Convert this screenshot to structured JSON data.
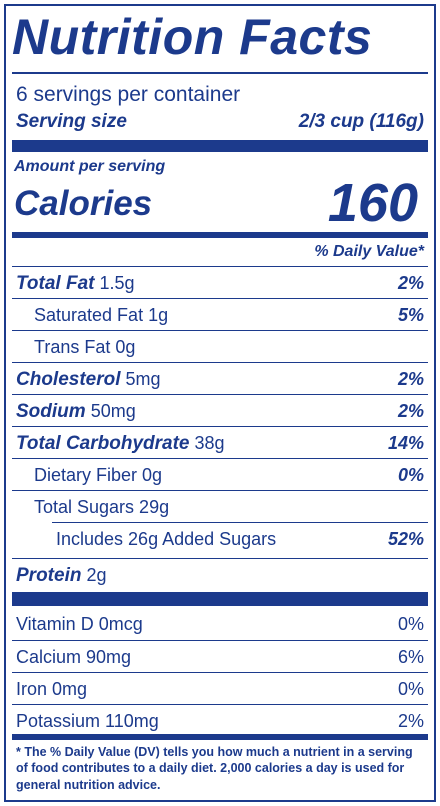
{
  "title": "Nutrition Facts",
  "servings_per_container": "6 servings per container",
  "serving_size": {
    "label": "Serving size",
    "value": "2/3 cup (116g)"
  },
  "amount_per_serving": "Amount per serving",
  "calories": {
    "label": "Calories",
    "value": "160"
  },
  "daily_value_header": "% Daily Value*",
  "nutrients": [
    {
      "name": "Total Fat",
      "amount": "1.5g",
      "dv": "2%"
    },
    {
      "name": "Saturated Fat 1g",
      "dv": "5%"
    },
    {
      "name": "Trans Fat 0g",
      "dv": ""
    },
    {
      "name": "Cholesterol",
      "amount": "5mg",
      "dv": "2%"
    },
    {
      "name": "Sodium",
      "amount": "50mg",
      "dv": "2%"
    },
    {
      "name": "Total Carbohydrate",
      "amount": "38g",
      "dv": "14%"
    },
    {
      "name": "Dietary Fiber 0g",
      "dv": "0%"
    },
    {
      "name": "Total Sugars 29g",
      "dv": ""
    },
    {
      "name": "Includes 26g Added Sugars",
      "dv": "52%"
    },
    {
      "name": "Protein",
      "amount": "2g",
      "dv": ""
    }
  ],
  "vitamins": [
    {
      "name": "Vitamin D 0mcg",
      "dv": "0%"
    },
    {
      "name": "Calcium 90mg",
      "dv": "6%"
    },
    {
      "name": "Iron 0mg",
      "dv": "0%"
    },
    {
      "name": "Potassium 110mg",
      "dv": "2%"
    }
  ],
  "footnote": "* The % Daily Value (DV) tells you how much a nutrient in a serving of food contributes to a daily diet. 2,000 calories a day is used for general nutrition advice.",
  "colors": {
    "primary": "#1c3a8c",
    "background": "#ffffff"
  }
}
